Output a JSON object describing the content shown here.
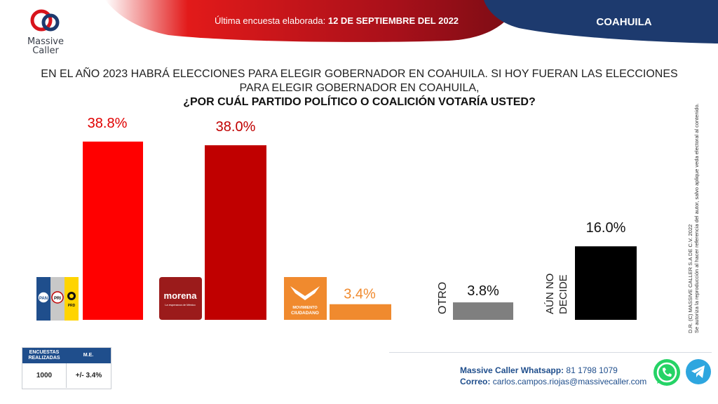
{
  "brand": {
    "name_line1": "Massive",
    "name_line2": "Caller"
  },
  "header": {
    "date_prefix": "Última encuesta elaborada:",
    "date_value": "12 DE SEPTIEMBRE DEL 2022",
    "region": "COAHUILA"
  },
  "question": {
    "line1": "EN EL AÑO 2023 HABRÁ ELECCIONES PARA ELEGIR GOBERNADOR EN COAHUILA. SI HOY FUERAN LAS ELECCIONES",
    "line2": "PARA ELEGIR GOBERNADOR EN COAHUILA,",
    "line3": "¿POR CUÁL PARTIDO POLÍTICO O COALICIÓN VOTARÍA USTED?"
  },
  "copyright": {
    "line1": "D.R. (C) MASSIVE CALLER S.A DE C.V. 2022",
    "line2": "Se autoriza la reproducción al hacer referencia del autor, salvo aplique veda electoral al contenido."
  },
  "logos": {
    "pan": "PAN",
    "pri": "PRI",
    "prd": "PRD",
    "morena": "morena",
    "morena_tagline": "La esperanza de México",
    "mc_line1": "MOVIMIENTO",
    "mc_line2": "CIUDADANO"
  },
  "chart_data": {
    "type": "bar",
    "categories": [
      "PAN-PRI-PRD",
      "MORENA",
      "MOVIMIENTO CIUDADANO",
      "OTRO",
      "AÚN NO DECIDE"
    ],
    "values": [
      38.8,
      38.0,
      3.4,
      3.8,
      16.0
    ],
    "value_labels": [
      "38.8%",
      "38.0%",
      "3.4%",
      "3.8%",
      "16.0%"
    ],
    "category_text_labels": {
      "otro": "OTRO",
      "aun_no_decide_1": "AÚN NO",
      "aun_no_decide_2": "DECIDE"
    },
    "colors": [
      "#ff0000",
      "#c00000",
      "#f08a2e",
      "#7f7f7f",
      "#000000"
    ],
    "value_label_colors": [
      "#e00000",
      "#c00000",
      "#f08a2e",
      "#111111",
      "#111111"
    ],
    "ylim": [
      0,
      40
    ],
    "grid": false,
    "legend": "none"
  },
  "stats": {
    "header_1": "ENCUESTAS REALIZADAS",
    "header_2": "M.E.",
    "value_1": "1000",
    "value_2": "+/- 3.4%"
  },
  "contact": {
    "whatsapp_label": "Massive Caller Whatsapp:",
    "whatsapp_number": "81 1798 1079",
    "email_label": "Correo:",
    "email_value": "carlos.campos.riojas@massivecaller.com"
  }
}
